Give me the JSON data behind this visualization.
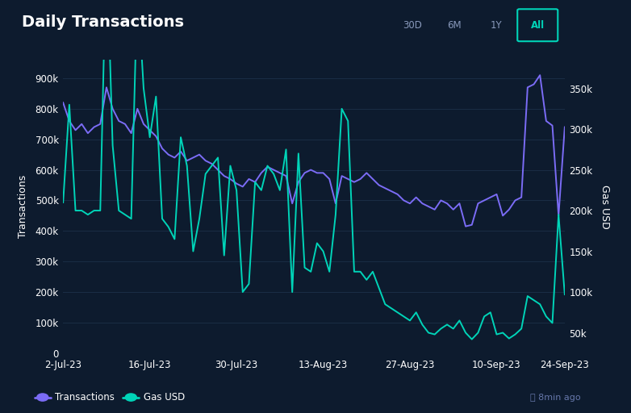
{
  "title": "Daily Transactions",
  "background_color": "#0d1b2e",
  "plot_bg_color": "#0d1b2e",
  "grid_color": "#1a2d45",
  "transactions_color": "#7b6cf6",
  "gas_color": "#00d4b8",
  "transactions_label": "Transactions",
  "gas_label": "Gas USD",
  "ylabel_left": "Transactions",
  "ylabel_right": "Gas USD",
  "x_tick_labels": [
    "2-Jul-23",
    "16-Jul-23",
    "30-Jul-23",
    "13-Aug-23",
    "27-Aug-23",
    "10-Sep-23",
    "24-Sep-23"
  ],
  "ylim_left": [
    0,
    960000
  ],
  "ylim_right": [
    25000,
    385000
  ],
  "yticks_left": [
    0,
    100000,
    200000,
    300000,
    400000,
    500000,
    600000,
    700000,
    800000,
    900000
  ],
  "yticks_right": [
    50000,
    100000,
    150000,
    200000,
    250000,
    300000,
    350000
  ],
  "buttons": [
    "30D",
    "6M",
    "1Y",
    "All"
  ],
  "active_button": "All",
  "footer_text": "8min ago",
  "transactions": [
    820000,
    760000,
    730000,
    750000,
    720000,
    740000,
    750000,
    870000,
    800000,
    760000,
    750000,
    720000,
    800000,
    750000,
    730000,
    710000,
    670000,
    650000,
    640000,
    660000,
    630000,
    640000,
    650000,
    630000,
    620000,
    600000,
    580000,
    570000,
    555000,
    545000,
    570000,
    560000,
    590000,
    610000,
    600000,
    590000,
    580000,
    490000,
    560000,
    590000,
    600000,
    590000,
    590000,
    570000,
    490000,
    580000,
    570000,
    560000,
    570000,
    590000,
    570000,
    550000,
    540000,
    530000,
    520000,
    500000,
    490000,
    510000,
    490000,
    480000,
    470000,
    500000,
    490000,
    470000,
    490000,
    415000,
    420000,
    490000,
    500000,
    510000,
    520000,
    450000,
    470000,
    500000,
    510000,
    870000,
    880000,
    910000,
    760000,
    745000,
    450000,
    740000
  ],
  "gas_usd": [
    210000,
    330000,
    200000,
    200000,
    195000,
    200000,
    200000,
    530000,
    280000,
    200000,
    195000,
    190000,
    480000,
    350000,
    290000,
    340000,
    190000,
    180000,
    165000,
    290000,
    255000,
    150000,
    190000,
    245000,
    255000,
    265000,
    145000,
    255000,
    225000,
    100000,
    110000,
    235000,
    225000,
    255000,
    245000,
    225000,
    275000,
    100000,
    270000,
    130000,
    125000,
    160000,
    150000,
    125000,
    195000,
    325000,
    310000,
    125000,
    125000,
    115000,
    125000,
    105000,
    85000,
    80000,
    75000,
    70000,
    65000,
    75000,
    60000,
    50000,
    48000,
    55000,
    60000,
    55000,
    65000,
    50000,
    42000,
    50000,
    70000,
    75000,
    48000,
    50000,
    43000,
    48000,
    55000,
    95000,
    90000,
    85000,
    70000,
    62000,
    195000,
    97000
  ]
}
